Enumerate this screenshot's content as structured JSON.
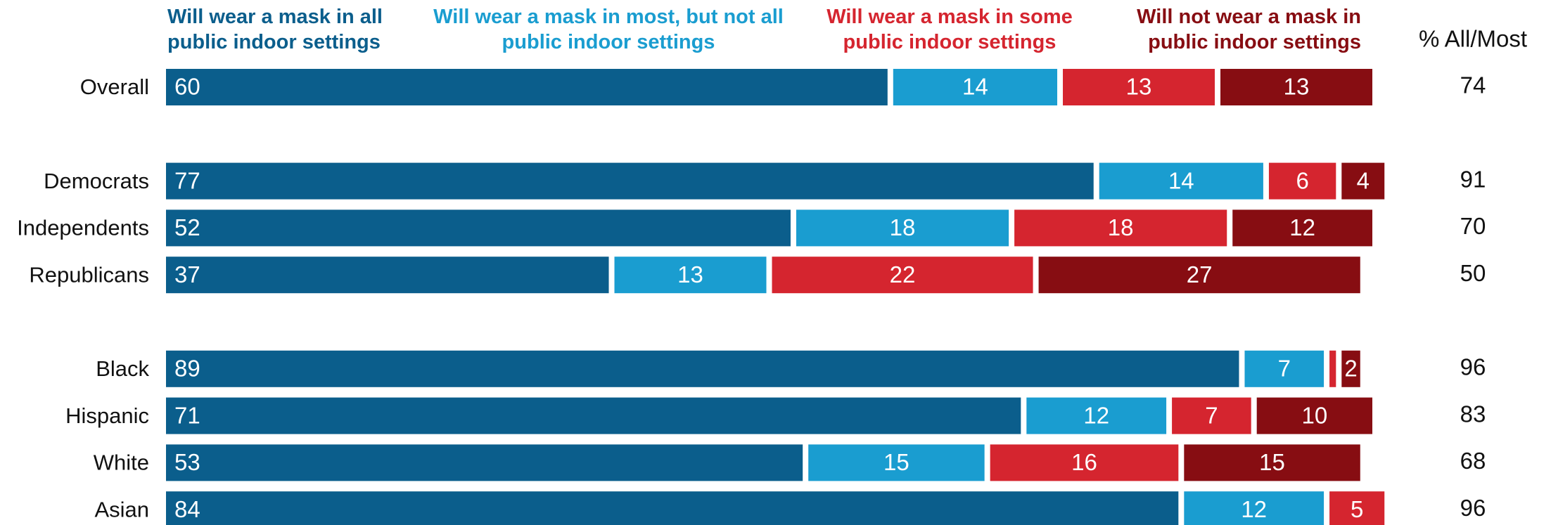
{
  "chart_data": {
    "type": "stacked-bar",
    "orientation": "horizontal",
    "categories": [
      "Overall",
      null,
      "Democrats",
      "Independents",
      "Republicans",
      null,
      "Black",
      "Hispanic",
      "White",
      "Asian"
    ],
    "xlim": [
      0,
      100
    ],
    "series": [
      {
        "name": "Will wear a mask in all public indoor settings",
        "color": "#0b5e8c",
        "values": [
          60,
          null,
          77,
          52,
          37,
          null,
          89,
          71,
          53,
          84
        ]
      },
      {
        "name": "Will wear a mask in most, but not all public indoor settings",
        "color": "#1a9dd0",
        "values": [
          14,
          null,
          14,
          18,
          13,
          null,
          7,
          12,
          15,
          12
        ]
      },
      {
        "name": "Will wear a mask in some public indoor settings",
        "color": "#d5252f",
        "values": [
          13,
          null,
          6,
          18,
          22,
          null,
          1,
          7,
          16,
          5
        ],
        "value_labels": [
          "13",
          null,
          "6",
          "18",
          "22",
          null,
          null,
          "7",
          "16",
          "5"
        ]
      },
      {
        "name": "Will not wear a mask in public indoor settings",
        "color": "#870d12",
        "values": [
          13,
          null,
          4,
          12,
          27,
          null,
          2,
          10,
          15,
          null
        ]
      }
    ],
    "totals": {
      "title": "% All/Most",
      "values": [
        74,
        null,
        91,
        70,
        50,
        null,
        96,
        83,
        68,
        96
      ]
    }
  }
}
